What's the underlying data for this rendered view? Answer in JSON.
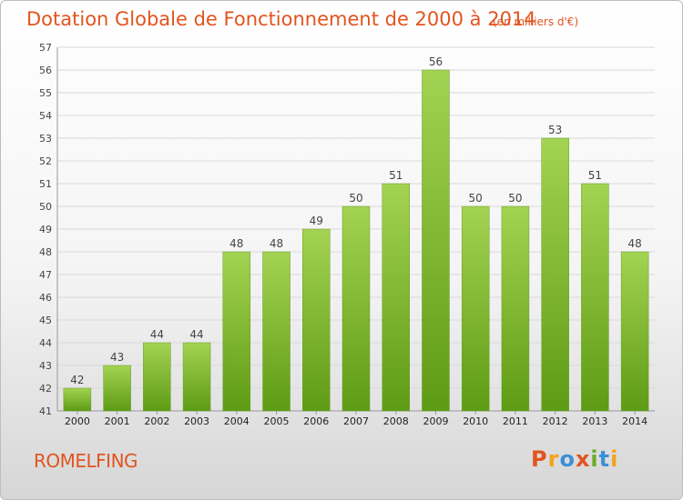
{
  "page": {
    "title": "Dotation Globale de Fonctionnement de 2000 à 2014",
    "unit": "(en milliers d'€)",
    "commune": "ROMELFING",
    "logo": "Proxiti"
  },
  "colors": {
    "title": "#e2541f",
    "bar_top": "#a3d352",
    "bar_bottom": "#5e9b15",
    "logo_letters": [
      "#e2541f",
      "#f2a31e",
      "#3c8fd6",
      "#e2541f",
      "#6aac2a",
      "#3c8fd6",
      "#f2a31e"
    ]
  },
  "chart_data": {
    "type": "bar",
    "title": "Dotation Globale de Fonctionnement de 2000 à 2014",
    "categories": [
      "2000",
      "2001",
      "2002",
      "2003",
      "2004",
      "2005",
      "2006",
      "2007",
      "2008",
      "2009",
      "2010",
      "2011",
      "2012",
      "2013",
      "2014"
    ],
    "values": [
      42,
      43,
      44,
      44,
      48,
      48,
      49,
      50,
      51,
      56,
      50,
      50,
      53,
      51,
      48
    ],
    "ylim": [
      41,
      57
    ],
    "yticks": [
      41,
      42,
      43,
      44,
      45,
      46,
      47,
      48,
      49,
      50,
      51,
      52,
      53,
      54,
      55,
      56,
      57
    ],
    "grid": true,
    "data_labels": true
  }
}
